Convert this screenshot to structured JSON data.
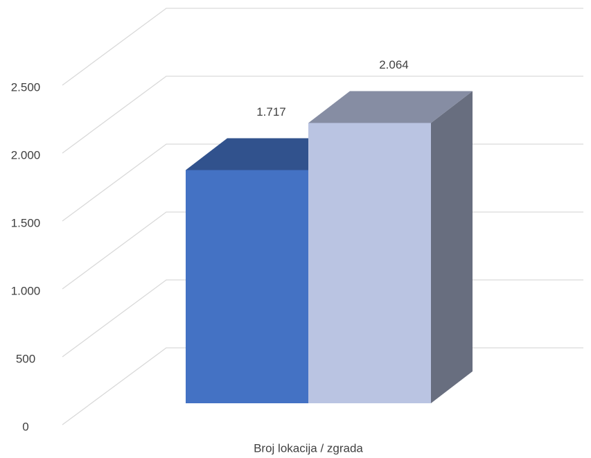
{
  "chart_data": {
    "type": "bar3d",
    "categories": [
      "Broj lokacija / zgrada"
    ],
    "series": [
      {
        "color": "#4472c4",
        "values": [
          1717
        ],
        "value_labels": [
          "1.717"
        ]
      },
      {
        "color": "#bac4e2",
        "values": [
          2064
        ],
        "value_labels": [
          "2.064"
        ]
      }
    ],
    "ylim": [
      0,
      2500
    ],
    "yticks": [
      0,
      500,
      {
        "value": 1000,
        "label": "1.000"
      },
      {
        "value": 1500,
        "label": "1.500"
      },
      {
        "value": 2000,
        "label": "2.000"
      },
      {
        "value": 2500,
        "label": "2.500"
      }
    ],
    "grid": true
  }
}
